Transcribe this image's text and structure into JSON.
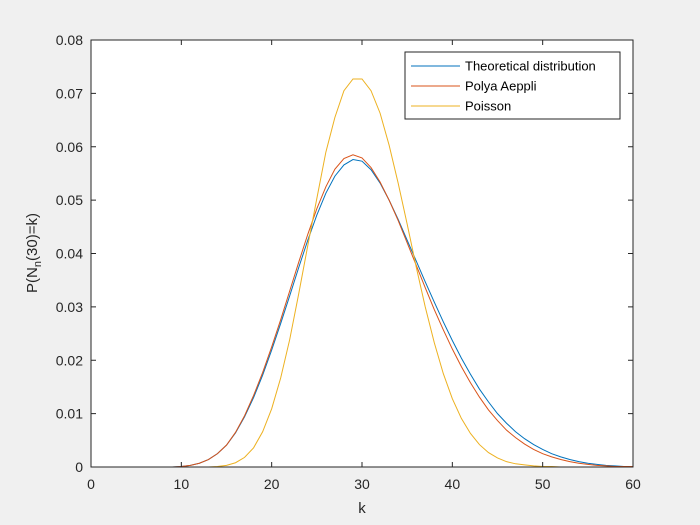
{
  "chart_data": {
    "type": "line",
    "title": "",
    "xlabel": "k",
    "ylabel_parts": {
      "prefix": "P(N",
      "subscript": "n",
      "suffix": "(30)=k)"
    },
    "xlim": [
      0,
      60
    ],
    "ylim": [
      0,
      0.08
    ],
    "xticks": [
      0,
      10,
      20,
      30,
      40,
      50,
      60
    ],
    "yticks": [
      0,
      0.01,
      0.02,
      0.03,
      0.04,
      0.05,
      0.06,
      0.07,
      0.08
    ],
    "ytick_labels": [
      "0",
      "0.01",
      "0.02",
      "0.03",
      "0.04",
      "0.05",
      "0.06",
      "0.07",
      "0.08"
    ],
    "grid": false,
    "legend_position": "top-right",
    "x": [
      0,
      1,
      2,
      3,
      4,
      5,
      6,
      7,
      8,
      9,
      10,
      11,
      12,
      13,
      14,
      15,
      16,
      17,
      18,
      19,
      20,
      21,
      22,
      23,
      24,
      25,
      26,
      27,
      28,
      29,
      30,
      31,
      32,
      33,
      34,
      35,
      36,
      37,
      38,
      39,
      40,
      41,
      42,
      43,
      44,
      45,
      46,
      47,
      48,
      49,
      50,
      51,
      52,
      53,
      54,
      55,
      56,
      57,
      58,
      59,
      60
    ],
    "series": [
      {
        "name": "Theoretical distribution",
        "color": "#0072BD",
        "values": [
          0,
          0,
          0,
          0,
          0,
          0,
          0,
          0,
          0,
          0,
          0.0001,
          0.0003,
          0.0007,
          0.0014,
          0.0025,
          0.0041,
          0.0064,
          0.0094,
          0.013,
          0.0172,
          0.0219,
          0.0269,
          0.0321,
          0.0374,
          0.0425,
          0.0472,
          0.0513,
          0.0545,
          0.0566,
          0.0576,
          0.0573,
          0.0557,
          0.0532,
          0.05,
          0.0464,
          0.0425,
          0.0386,
          0.0347,
          0.0309,
          0.0272,
          0.0237,
          0.0204,
          0.0174,
          0.0146,
          0.0122,
          0.01,
          0.0082,
          0.0066,
          0.0053,
          0.0042,
          0.0033,
          0.0025,
          0.0019,
          0.0014,
          0.001,
          0.0007,
          0.0005,
          0.0003,
          0.0002,
          0.0001,
          0.0001
        ]
      },
      {
        "name": "Polya Aeppli",
        "color": "#D95319",
        "values": [
          0,
          0,
          0,
          0,
          0,
          0,
          0,
          0,
          0,
          0,
          0.0001,
          0.0003,
          0.0007,
          0.0014,
          0.0025,
          0.0041,
          0.0065,
          0.0096,
          0.0134,
          0.0177,
          0.0225,
          0.0276,
          0.033,
          0.0384,
          0.0436,
          0.0484,
          0.0525,
          0.0558,
          0.0578,
          0.0585,
          0.0579,
          0.0561,
          0.0534,
          0.05,
          0.0462,
          0.042,
          0.0378,
          0.0336,
          0.0295,
          0.0257,
          0.0221,
          0.0188,
          0.0158,
          0.0131,
          0.0107,
          0.0087,
          0.0069,
          0.0055,
          0.0043,
          0.0033,
          0.0025,
          0.0019,
          0.0014,
          0.001,
          0.0007,
          0.0005,
          0.0003,
          0.0002,
          0.0001,
          0.0001,
          0.0001
        ]
      },
      {
        "name": "Poisson",
        "color": "#EDB120",
        "values": [
          0,
          0,
          0,
          0,
          0,
          0,
          0,
          0,
          0,
          0,
          0,
          0,
          0,
          0,
          0.0001,
          0.0003,
          0.0008,
          0.0018,
          0.0036,
          0.0066,
          0.0109,
          0.0167,
          0.0239,
          0.0325,
          0.0415,
          0.0503,
          0.059,
          0.0655,
          0.0705,
          0.0727,
          0.0727,
          0.0705,
          0.0663,
          0.0603,
          0.0532,
          0.0455,
          0.0375,
          0.03,
          0.0233,
          0.0175,
          0.0128,
          0.0091,
          0.0063,
          0.0042,
          0.0027,
          0.0017,
          0.001,
          0.0006,
          0.0004,
          0.0002,
          0.0001,
          0.0001,
          0,
          0,
          0,
          0,
          0,
          0,
          0,
          0,
          0
        ]
      }
    ]
  }
}
